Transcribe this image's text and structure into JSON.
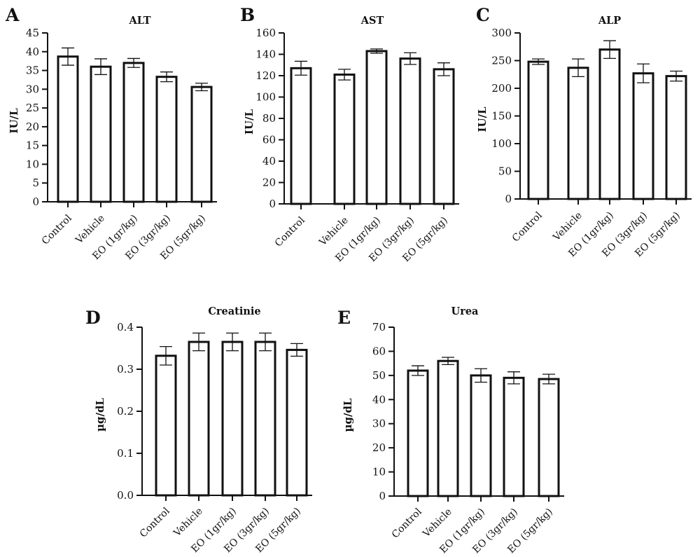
{
  "figure": {
    "panel_count": 5
  },
  "chart_data": [
    {
      "panel": "A",
      "type": "bar",
      "title": "ALT",
      "xlabel": "",
      "ylabel": "IU/L",
      "ylim": [
        0,
        45
      ],
      "yticks": [
        0,
        5,
        10,
        15,
        20,
        25,
        30,
        35,
        40,
        45
      ],
      "categories": [
        "Control",
        "Vehicle",
        "EO (1gr/kg)",
        "EO (3gr/kg)",
        "EO (5gr/kg)"
      ],
      "values": [
        38.7,
        36.0,
        37.0,
        33.3,
        30.6
      ],
      "errors": [
        2.3,
        2.1,
        1.2,
        1.3,
        1.0
      ],
      "grid": false
    },
    {
      "panel": "B",
      "type": "bar",
      "title": "AST",
      "xlabel": "",
      "ylabel": "IU/L",
      "ylim": [
        0,
        160
      ],
      "yticks": [
        0,
        20,
        40,
        60,
        80,
        100,
        120,
        140,
        160
      ],
      "categories": [
        "Control",
        "Vehicle",
        "EO (1gr/kg)",
        "EO (3gr/kg)",
        "EO (5gr/kg)"
      ],
      "values": [
        127,
        121,
        143,
        136,
        126
      ],
      "errors": [
        6.5,
        5,
        2,
        5.5,
        6
      ],
      "grid": false
    },
    {
      "panel": "C",
      "type": "bar",
      "title": "ALP",
      "xlabel": "",
      "ylabel": "IU/L",
      "ylim": [
        0,
        300
      ],
      "yticks": [
        0,
        50,
        100,
        150,
        200,
        250,
        300
      ],
      "categories": [
        "Control",
        "Vehicle",
        "EO (1gr/kg)",
        "EO (3gr/kg)",
        "EO (5gr/kg)"
      ],
      "values": [
        248,
        237,
        270,
        227,
        222
      ],
      "errors": [
        5,
        16,
        16,
        17,
        9
      ],
      "grid": false
    },
    {
      "panel": "D",
      "type": "bar",
      "title": "Creatinie",
      "xlabel": "",
      "ylabel": "µg/dL",
      "ylim": [
        0,
        0.4
      ],
      "yticks": [
        0,
        0.1,
        0.2,
        0.3,
        0.4
      ],
      "yticklabels": [
        "0.0",
        "0.1",
        "0.2",
        "0.3",
        "0.4"
      ],
      "categories": [
        "Control",
        "Vehicle",
        "EO (1gr/kg)",
        "EO (3gr/kg)",
        "EO (5gr/kg)"
      ],
      "values": [
        0.332,
        0.365,
        0.365,
        0.365,
        0.346
      ],
      "errors": [
        0.022,
        0.021,
        0.021,
        0.021,
        0.015
      ],
      "grid": false
    },
    {
      "panel": "E",
      "type": "bar",
      "title": "Urea",
      "xlabel": "",
      "ylabel": "µg/dL",
      "ylim": [
        0,
        70
      ],
      "yticks": [
        0,
        10,
        20,
        30,
        40,
        50,
        60,
        70
      ],
      "categories": [
        "Control",
        "Vehicle",
        "EO (1gr/kg)",
        "EO (3gr/kg)",
        "EO (5gr/kg)"
      ],
      "values": [
        52,
        56,
        50,
        49,
        48.5
      ],
      "errors": [
        2,
        1.5,
        2.8,
        2.5,
        2
      ],
      "grid": false
    }
  ]
}
